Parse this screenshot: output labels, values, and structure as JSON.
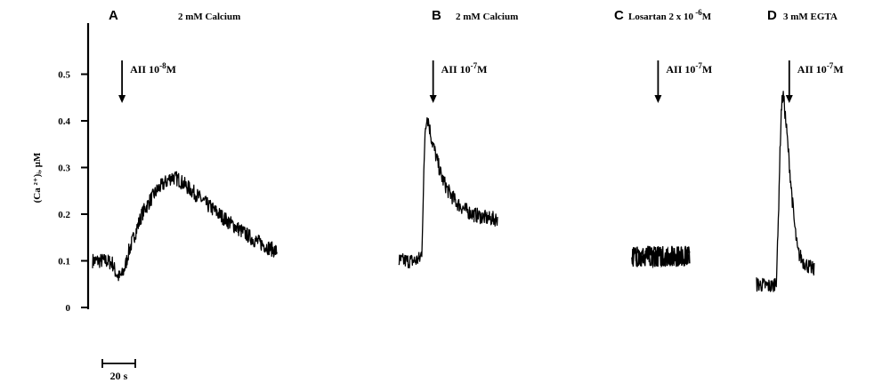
{
  "chart_data": {
    "type": "line",
    "y_axis": {
      "label": "(Ca ²⁺)ᵢ, µM",
      "ylim": [
        0,
        0.6
      ],
      "ticks": [
        0,
        0.1,
        0.2,
        0.3,
        0.4,
        0.5
      ],
      "tick_labels": [
        "0",
        "0.1",
        "0.2",
        "0.3",
        "0.4",
        "0.5"
      ]
    },
    "scale_bar": {
      "label": "20 s",
      "seconds": 20
    },
    "panels": [
      {
        "letter": "A",
        "condition": "2 mM Calcium",
        "stimulus": "AII 10",
        "stimulus_exp": "-8",
        "stimulus_unit": "M",
        "stimulus_time_s": 6,
        "points": [
          [
            0,
            0.1
          ],
          [
            8,
            0.1
          ],
          [
            12,
            0.095
          ],
          [
            14,
            0.075
          ],
          [
            16,
            0.065
          ],
          [
            18,
            0.07
          ],
          [
            20,
            0.09
          ],
          [
            22,
            0.12
          ],
          [
            26,
            0.16
          ],
          [
            30,
            0.2
          ],
          [
            35,
            0.23
          ],
          [
            40,
            0.255
          ],
          [
            45,
            0.27
          ],
          [
            48,
            0.28
          ],
          [
            52,
            0.275
          ],
          [
            57,
            0.26
          ],
          [
            62,
            0.245
          ],
          [
            68,
            0.225
          ],
          [
            75,
            0.205
          ],
          [
            82,
            0.185
          ],
          [
            90,
            0.165
          ],
          [
            98,
            0.145
          ],
          [
            106,
            0.13
          ],
          [
            112,
            0.12
          ]
        ]
      },
      {
        "letter": "B",
        "condition": "2 mM Calcium",
        "stimulus": "AII 10",
        "stimulus_exp": "-7",
        "stimulus_unit": "M",
        "stimulus_time_s": 9,
        "points": [
          [
            0,
            0.1
          ],
          [
            10,
            0.1
          ],
          [
            13,
            0.105
          ],
          [
            14,
            0.12
          ],
          [
            15,
            0.25
          ],
          [
            16,
            0.38
          ],
          [
            17,
            0.41
          ],
          [
            18,
            0.4
          ],
          [
            20,
            0.36
          ],
          [
            23,
            0.32
          ],
          [
            26,
            0.28
          ],
          [
            30,
            0.25
          ],
          [
            35,
            0.225
          ],
          [
            40,
            0.21
          ],
          [
            45,
            0.2
          ],
          [
            50,
            0.195
          ],
          [
            55,
            0.19
          ],
          [
            60,
            0.19
          ]
        ]
      },
      {
        "letter": "C",
        "condition": "Losartan 2 x 10",
        "condition_exp": "-6",
        "condition_unit": "M",
        "stimulus": "AII 10",
        "stimulus_exp": "-7",
        "stimulus_unit": "M",
        "stimulus_time_s": 4,
        "points": [
          [
            0,
            0.11
          ],
          [
            5,
            0.11
          ],
          [
            10,
            0.11
          ],
          [
            15,
            0.11
          ],
          [
            20,
            0.11
          ],
          [
            25,
            0.11
          ],
          [
            30,
            0.11
          ],
          [
            35,
            0.11
          ]
        ]
      },
      {
        "letter": "D",
        "condition": "3 mM EGTA",
        "stimulus": "AII 10",
        "stimulus_exp": "-7",
        "stimulus_unit": "M",
        "stimulus_time_s": 8,
        "points": [
          [
            0,
            0.05
          ],
          [
            10,
            0.045
          ],
          [
            12,
            0.06
          ],
          [
            13,
            0.15
          ],
          [
            14,
            0.3
          ],
          [
            15,
            0.42
          ],
          [
            16,
            0.46
          ],
          [
            17,
            0.43
          ],
          [
            19,
            0.35
          ],
          [
            21,
            0.26
          ],
          [
            23,
            0.18
          ],
          [
            25,
            0.12
          ],
          [
            28,
            0.1
          ],
          [
            31,
            0.09
          ],
          [
            35,
            0.08
          ]
        ]
      }
    ]
  }
}
